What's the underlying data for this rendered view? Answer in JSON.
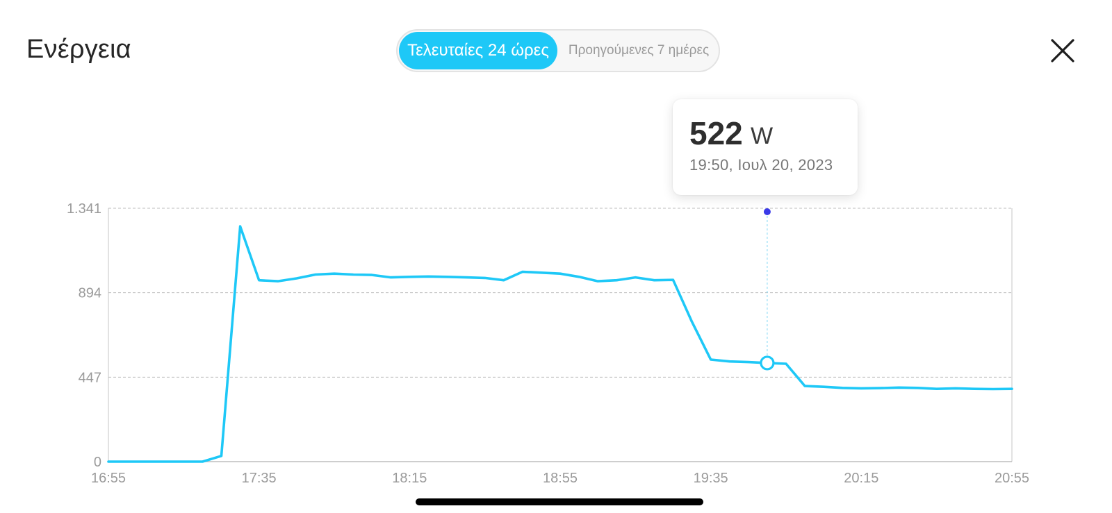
{
  "header": {
    "title": "Ενέργεια",
    "tabs": [
      {
        "label": "Τελευταίες 24 ώρες",
        "active": true
      },
      {
        "label": "Προηγούμενες 7 ημέρες",
        "active": false
      }
    ],
    "close_icon": "close-icon"
  },
  "tooltip": {
    "value": "522",
    "unit": "W",
    "datetime": "19:50, Ιουλ 20, 2023"
  },
  "colors": {
    "accent": "#1ec8f7",
    "marker": "#3a3ae8",
    "grid": "#bdbdbd",
    "axis_text": "#9a9a9a"
  },
  "chart_data": {
    "type": "line",
    "title": "",
    "xlabel": "",
    "ylabel": "",
    "x_ticks": [
      "16:55",
      "17:35",
      "18:15",
      "18:55",
      "19:35",
      "20:15",
      "20:55"
    ],
    "y_ticks": [
      {
        "value": 0,
        "label": "0"
      },
      {
        "value": 447,
        "label": "447"
      },
      {
        "value": 894,
        "label": "894"
      },
      {
        "value": 1341,
        "label": "1.341"
      }
    ],
    "x_range_minutes": [
      0,
      240
    ],
    "ylim": [
      0,
      1341
    ],
    "grid": true,
    "series": [
      {
        "unit": "W",
        "points": [
          {
            "x": "16:55",
            "y": 0
          },
          {
            "x": "17:00",
            "y": 0
          },
          {
            "x": "17:05",
            "y": 0
          },
          {
            "x": "17:10",
            "y": 0
          },
          {
            "x": "17:15",
            "y": 0
          },
          {
            "x": "17:20",
            "y": 0
          },
          {
            "x": "17:25",
            "y": 30
          },
          {
            "x": "17:30",
            "y": 1245
          },
          {
            "x": "17:35",
            "y": 960
          },
          {
            "x": "17:40",
            "y": 955
          },
          {
            "x": "17:45",
            "y": 970
          },
          {
            "x": "17:50",
            "y": 990
          },
          {
            "x": "17:55",
            "y": 995
          },
          {
            "x": "18:00",
            "y": 990
          },
          {
            "x": "18:05",
            "y": 988
          },
          {
            "x": "18:10",
            "y": 975
          },
          {
            "x": "18:15",
            "y": 978
          },
          {
            "x": "18:20",
            "y": 980
          },
          {
            "x": "18:25",
            "y": 978
          },
          {
            "x": "18:30",
            "y": 975
          },
          {
            "x": "18:35",
            "y": 972
          },
          {
            "x": "18:40",
            "y": 960
          },
          {
            "x": "18:45",
            "y": 1005
          },
          {
            "x": "18:50",
            "y": 1000
          },
          {
            "x": "18:55",
            "y": 995
          },
          {
            "x": "19:00",
            "y": 978
          },
          {
            "x": "19:05",
            "y": 955
          },
          {
            "x": "19:10",
            "y": 960
          },
          {
            "x": "19:15",
            "y": 975
          },
          {
            "x": "19:20",
            "y": 960
          },
          {
            "x": "19:25",
            "y": 962
          },
          {
            "x": "19:30",
            "y": 740
          },
          {
            "x": "19:35",
            "y": 540
          },
          {
            "x": "19:40",
            "y": 530
          },
          {
            "x": "19:45",
            "y": 527
          },
          {
            "x": "19:50",
            "y": 522
          },
          {
            "x": "19:55",
            "y": 518
          },
          {
            "x": "20:00",
            "y": 400
          },
          {
            "x": "20:05",
            "y": 396
          },
          {
            "x": "20:10",
            "y": 390
          },
          {
            "x": "20:15",
            "y": 388
          },
          {
            "x": "20:20",
            "y": 389
          },
          {
            "x": "20:25",
            "y": 392
          },
          {
            "x": "20:30",
            "y": 390
          },
          {
            "x": "20:35",
            "y": 385
          },
          {
            "x": "20:40",
            "y": 388
          },
          {
            "x": "20:45",
            "y": 385
          },
          {
            "x": "20:50",
            "y": 384
          },
          {
            "x": "20:55",
            "y": 385
          }
        ]
      }
    ],
    "highlight": {
      "x": "19:50",
      "y": 522
    }
  }
}
